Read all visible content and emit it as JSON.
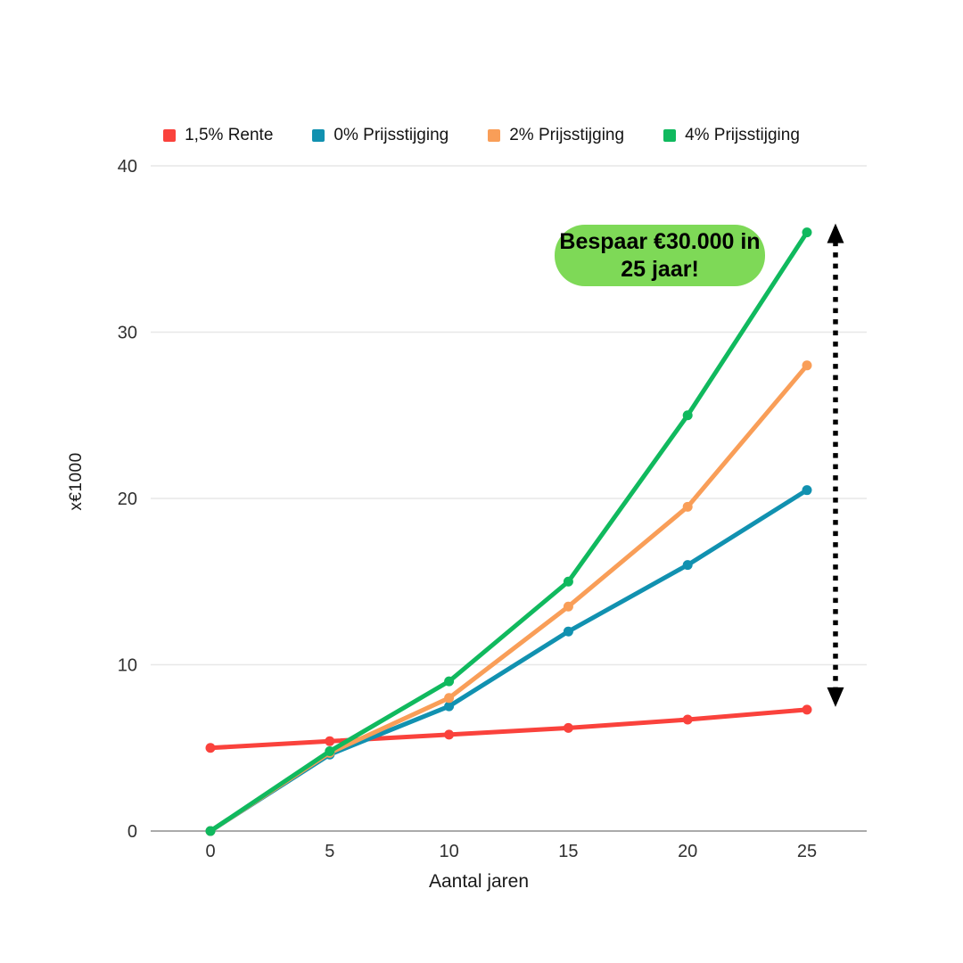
{
  "chart_data": {
    "type": "line",
    "x": [
      0,
      5,
      10,
      15,
      20,
      25
    ],
    "xticks": [
      0,
      5,
      10,
      15,
      20,
      25
    ],
    "yticks": [
      0,
      10,
      20,
      30,
      40
    ],
    "xlim": [
      0,
      25
    ],
    "ylim": [
      0,
      40
    ],
    "xlabel": "Aantal jaren",
    "ylabel": "x€1000",
    "grid": "horizontal",
    "legend_position": "top",
    "series": [
      {
        "name": "1,5% Rente",
        "color": "#FA423C",
        "values": [
          5,
          5.4,
          5.8,
          6.2,
          6.7,
          7.3
        ]
      },
      {
        "name": "0% Prijsstijging",
        "color": "#1191B0",
        "values": [
          0,
          4.6,
          7.5,
          12,
          16,
          20.5
        ]
      },
      {
        "name": "2% Prijsstijging",
        "color": "#F99E58",
        "values": [
          0,
          4.7,
          8,
          13.5,
          19.5,
          28
        ]
      },
      {
        "name": "4% Prijsstijging",
        "color": "#10B95E",
        "values": [
          0,
          4.8,
          9,
          15,
          25,
          36
        ]
      }
    ],
    "annotation": {
      "lines": [
        "Bespaar €30.000 in",
        "25 jaar!"
      ],
      "fill": "#7ED957",
      "text_color": "#000000"
    },
    "arrow": {
      "style": "dotted-double-headed",
      "color": "#000000",
      "from_value": 36,
      "to_value": 7.3
    },
    "style": {
      "grid_color": "#E7E7E7",
      "axis_line_color": "#ABABAB",
      "tick_color": "#303030"
    }
  }
}
